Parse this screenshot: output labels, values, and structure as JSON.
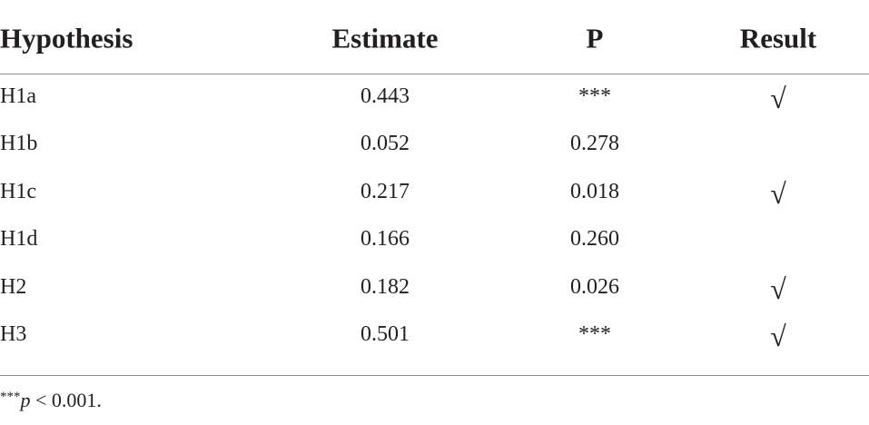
{
  "table": {
    "columns": [
      "Hypothesis",
      "Estimate",
      "P",
      "Result"
    ],
    "rows": [
      {
        "hypothesis": "H1a",
        "estimate": "0.443",
        "p": "***",
        "result": "√"
      },
      {
        "hypothesis": "H1b",
        "estimate": "0.052",
        "p": "0.278"
      },
      {
        "hypothesis": "H1c",
        "estimate": "0.217",
        "p": "0.018",
        "result": "√"
      },
      {
        "hypothesis": "H1d",
        "estimate": "0.166",
        "p": "0.260"
      },
      {
        "hypothesis": "H2",
        "estimate": "0.182",
        "p": "0.026",
        "result": "√"
      },
      {
        "hypothesis": "H3",
        "estimate": "0.501",
        "p": "***",
        "result": "√"
      }
    ]
  },
  "footnote": {
    "marker": "***",
    "symbol": "p",
    "text": " < 0.001."
  }
}
